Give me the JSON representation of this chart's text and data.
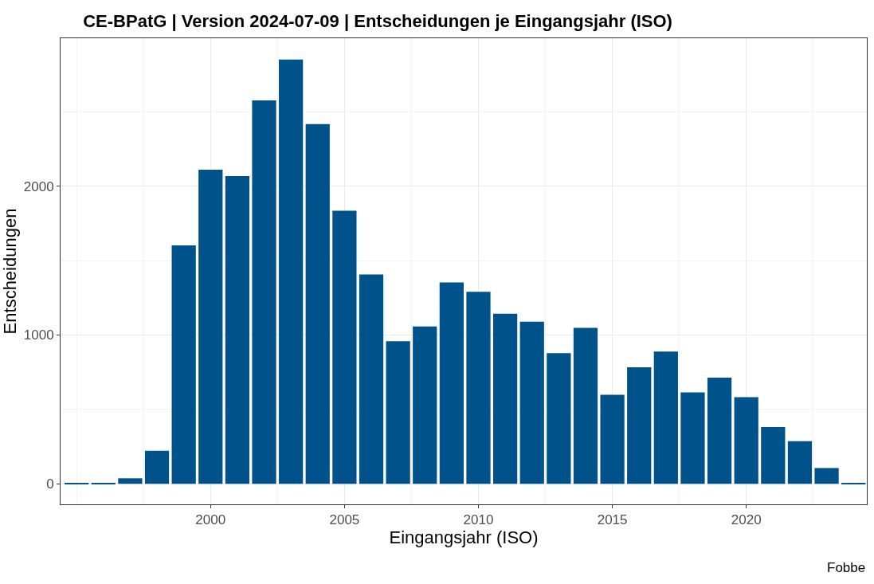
{
  "chart_data": {
    "type": "bar",
    "title": "CE-BPatG | Version 2024-07-09 | Entscheidungen je Eingangsjahr (ISO)",
    "xlabel": "Eingangsjahr (ISO)",
    "ylabel": "Entscheidungen",
    "annotations": [
      "Fobbe"
    ],
    "x": [
      1995,
      1996,
      1997,
      1998,
      1999,
      2000,
      2001,
      2002,
      2003,
      2004,
      2005,
      2006,
      2007,
      2008,
      2009,
      2010,
      2011,
      2012,
      2013,
      2014,
      2015,
      2016,
      2017,
      2018,
      2019,
      2020,
      2021,
      2022,
      2023,
      2024
    ],
    "values": [
      5,
      3,
      37,
      222,
      1603,
      2111,
      2069,
      2577,
      2852,
      2418,
      1836,
      1407,
      958,
      1058,
      1354,
      1291,
      1143,
      1090,
      878,
      1048,
      598,
      783,
      889,
      614,
      714,
      582,
      381,
      286,
      106,
      5
    ],
    "color": "#00538a",
    "xlim": [
      1994.4,
      2024.5
    ],
    "xticks": [
      2000,
      2005,
      2010,
      2015,
      2020
    ],
    "ylim": [
      -138,
      2995
    ],
    "yticks": [
      0,
      1000,
      2000
    ],
    "grid": true
  }
}
